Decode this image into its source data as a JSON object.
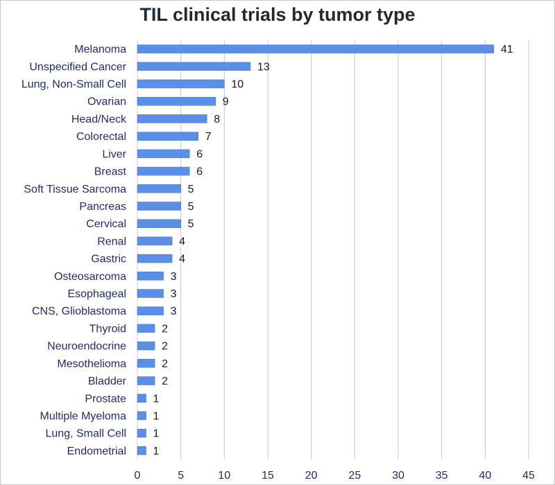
{
  "chart_data": {
    "type": "bar",
    "orientation": "horizontal",
    "title": "TIL clinical trials by tumor type",
    "xlabel": "",
    "ylabel": "",
    "xlim": [
      0,
      45
    ],
    "xticks": [
      0,
      5,
      10,
      15,
      20,
      25,
      30,
      35,
      40,
      45
    ],
    "grid": "vertical",
    "legend": "none",
    "colors": {
      "bar": "#5b8ee6",
      "bar_edge": "#3f74d0",
      "grid": "#c9c9c9",
      "category_text": "#1f2d6b",
      "value_text": "#1a1a1a"
    },
    "categories": [
      "Melanoma",
      "Unspecified Cancer",
      "Lung, Non-Small Cell",
      "Ovarian",
      "Head/Neck",
      "Colorectal",
      "Liver",
      "Breast",
      "Soft Tissue Sarcoma",
      "Pancreas",
      "Cervical",
      "Renal",
      "Gastric",
      "Osteosarcoma",
      "Esophageal",
      "CNS, Glioblastoma",
      "Thyroid",
      "Neuroendocrine",
      "Mesothelioma",
      "Bladder",
      "Prostate",
      "Multiple Myeloma",
      "Lung, Small Cell",
      "Endometrial"
    ],
    "values": [
      41,
      13,
      10,
      9,
      8,
      7,
      6,
      6,
      5,
      5,
      5,
      4,
      4,
      3,
      3,
      3,
      2,
      2,
      2,
      2,
      1,
      1,
      1,
      1
    ],
    "data_labels": true
  }
}
